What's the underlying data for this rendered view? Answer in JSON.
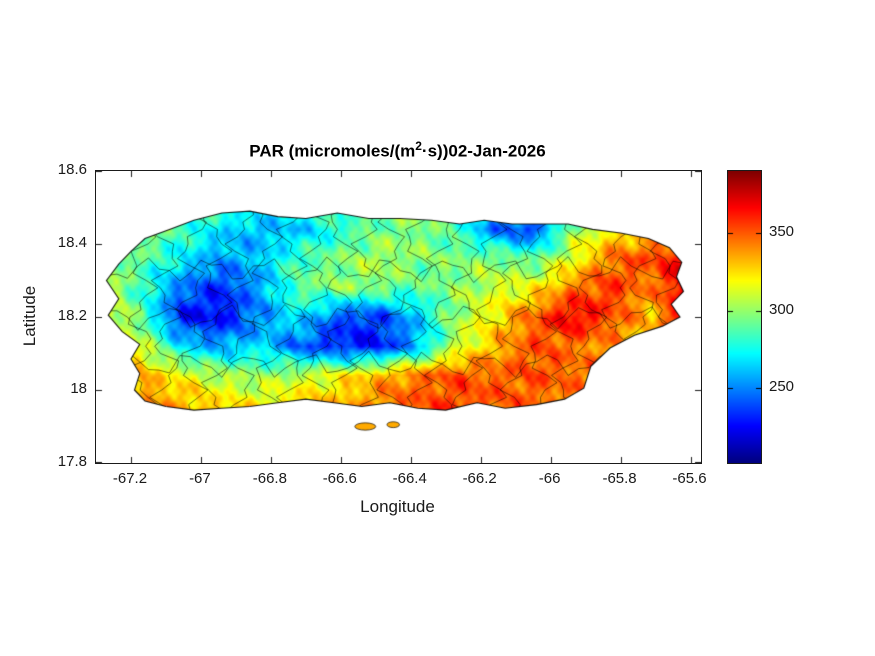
{
  "figure": {
    "title_prefix": "PAR (micromoles/(m",
    "title_sup": "2",
    "title_suffix": "·s))02-Jan-2026",
    "xlabel": "Longitude",
    "ylabel": "Latitude"
  },
  "chart_data": {
    "type": "heatmap",
    "title": "PAR (micromoles/(m^2·s))02-Jan-2026",
    "xlabel": "Longitude",
    "ylabel": "Latitude",
    "xlim": [
      -67.3,
      -65.57
    ],
    "ylim": [
      17.8,
      18.6
    ],
    "xticks": [
      -67.2,
      -67,
      -66.8,
      -66.6,
      -66.4,
      -66.2,
      -66,
      -65.8,
      -65.6
    ],
    "xtick_labels": [
      "-67.2",
      "-67",
      "-66.8",
      "-66.6",
      "-66.4",
      "-66.2",
      "-66",
      "-65.8",
      "-65.6"
    ],
    "yticks": [
      17.8,
      18,
      18.2,
      18.4,
      18.6
    ],
    "ytick_labels": [
      "17.8",
      "18",
      "18.2",
      "18.4",
      "18.6"
    ],
    "grid_on": false,
    "colorbar": {
      "colormap": "jet",
      "cmin": 202,
      "cmax": 390,
      "ticks": [
        250,
        300,
        350
      ],
      "tick_labels": [
        "250",
        "300",
        "350"
      ],
      "position": "right"
    },
    "grid": {
      "lons": [
        -67.28,
        -67.168,
        -67.056,
        -66.944,
        -66.832,
        -66.72,
        -66.608,
        -66.496,
        -66.384,
        -66.272,
        -66.16,
        -66.048,
        -65.936,
        -65.824,
        -65.712,
        -65.6
      ],
      "lats": [
        18.52,
        18.44,
        18.36,
        18.28,
        18.2,
        18.12,
        18.04,
        17.94
      ],
      "values": [
        [
          300,
          298,
          295,
          288,
          282,
          285,
          295,
          300,
          298,
          292,
          272,
          268,
          295,
          310,
          315,
          320
        ],
        [
          302,
          300,
          285,
          268,
          258,
          262,
          278,
          292,
          298,
          285,
          245,
          235,
          300,
          322,
          330,
          335
        ],
        [
          298,
          290,
          272,
          255,
          262,
          285,
          295,
          305,
          298,
          295,
          298,
          288,
          315,
          345,
          355,
          368
        ],
        [
          312,
          282,
          248,
          232,
          255,
          290,
          300,
          298,
          288,
          298,
          310,
          318,
          345,
          358,
          340,
          382
        ],
        [
          322,
          288,
          228,
          225,
          250,
          272,
          240,
          235,
          262,
          300,
          322,
          348,
          372,
          352,
          330,
          375
        ],
        [
          330,
          312,
          268,
          255,
          268,
          242,
          230,
          228,
          255,
          308,
          332,
          352,
          345,
          338,
          330,
          340
        ],
        [
          338,
          332,
          318,
          305,
          298,
          308,
          318,
          332,
          345,
          352,
          348,
          352,
          348,
          342,
          335,
          330
        ],
        [
          342,
          346,
          340,
          330,
          326,
          332,
          336,
          346,
          352,
          356,
          352,
          346,
          340,
          336,
          330,
          326
        ]
      ]
    },
    "island_polygon": [
      [
        -67.2,
        18.38
      ],
      [
        -67.16,
        18.415
      ],
      [
        -67.09,
        18.44
      ],
      [
        -67.02,
        18.465
      ],
      [
        -66.94,
        18.485
      ],
      [
        -66.86,
        18.49
      ],
      [
        -66.78,
        18.475
      ],
      [
        -66.7,
        18.47
      ],
      [
        -66.61,
        18.485
      ],
      [
        -66.52,
        18.47
      ],
      [
        -66.43,
        18.47
      ],
      [
        -66.34,
        18.465
      ],
      [
        -66.26,
        18.455
      ],
      [
        -66.19,
        18.465
      ],
      [
        -66.11,
        18.455
      ],
      [
        -66.03,
        18.455
      ],
      [
        -65.95,
        18.455
      ],
      [
        -65.88,
        18.44
      ],
      [
        -65.8,
        18.43
      ],
      [
        -65.72,
        18.415
      ],
      [
        -65.66,
        18.39
      ],
      [
        -65.625,
        18.35
      ],
      [
        -65.64,
        18.31
      ],
      [
        -65.62,
        18.27
      ],
      [
        -65.655,
        18.235
      ],
      [
        -65.63,
        18.2
      ],
      [
        -65.68,
        18.175
      ],
      [
        -65.76,
        18.15
      ],
      [
        -65.83,
        18.115
      ],
      [
        -65.885,
        18.065
      ],
      [
        -65.905,
        18.005
      ],
      [
        -65.96,
        17.975
      ],
      [
        -66.04,
        17.96
      ],
      [
        -66.13,
        17.95
      ],
      [
        -66.21,
        17.965
      ],
      [
        -66.3,
        17.945
      ],
      [
        -66.38,
        17.95
      ],
      [
        -66.46,
        17.965
      ],
      [
        -66.54,
        17.955
      ],
      [
        -66.62,
        17.965
      ],
      [
        -66.7,
        17.975
      ],
      [
        -66.78,
        17.965
      ],
      [
        -66.86,
        17.955
      ],
      [
        -66.94,
        17.95
      ],
      [
        -67.02,
        17.945
      ],
      [
        -67.1,
        17.955
      ],
      [
        -67.16,
        17.97
      ],
      [
        -67.19,
        18.0
      ],
      [
        -67.175,
        18.045
      ],
      [
        -67.2,
        18.085
      ],
      [
        -67.175,
        18.125
      ],
      [
        -67.225,
        18.16
      ],
      [
        -67.265,
        18.205
      ],
      [
        -67.235,
        18.25
      ],
      [
        -67.27,
        18.3
      ],
      [
        -67.235,
        18.345
      ]
    ],
    "islets": [
      [
        -66.53,
        17.9,
        0.03,
        0.01
      ],
      [
        -66.45,
        17.905,
        0.018,
        0.008
      ]
    ],
    "islet_value": 335,
    "boundaries": {
      "vertical_lines": 22,
      "horizontal_lines": 3
    }
  }
}
